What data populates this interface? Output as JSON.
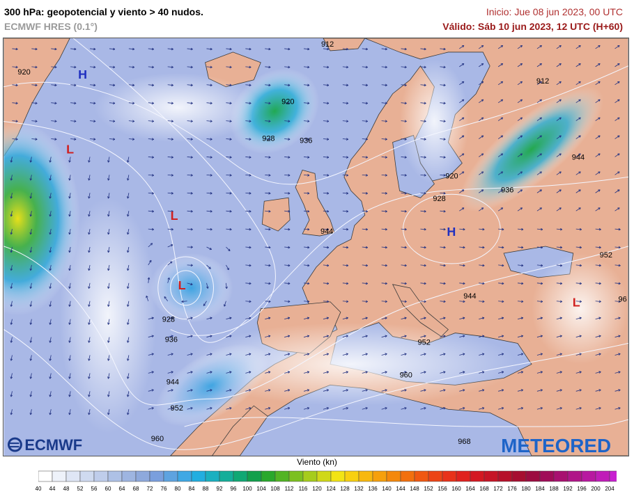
{
  "header": {
    "title": "300 hPa: geopotencial y viento > 40 nudos.",
    "subtitle": "ECMWF HRES (0.1°)",
    "init": "Inicio: Jue 08 jun 2023, 00 UTC",
    "valid": "Válido: Sáb 10 jun 2023, 12 UTC (H+60)"
  },
  "map": {
    "isohypse_labels": [
      "920",
      "912",
      "920",
      "928",
      "936",
      "912",
      "944",
      "920",
      "928",
      "936",
      "944",
      "952",
      "944",
      "928",
      "936",
      "944",
      "952",
      "960",
      "952",
      "960",
      "968",
      "96"
    ],
    "pressure_centers": [
      {
        "type": "H"
      },
      {
        "type": "L"
      },
      {
        "type": "L"
      },
      {
        "type": "L"
      },
      {
        "type": "H"
      },
      {
        "type": "L"
      }
    ],
    "logos": {
      "left": "ECMWF",
      "right": "METEORED"
    }
  },
  "legend": {
    "title": "Viento (kn)",
    "ticks": [
      "40",
      "44",
      "48",
      "52",
      "56",
      "60",
      "64",
      "68",
      "72",
      "76",
      "80",
      "84",
      "88",
      "92",
      "96",
      "100",
      "104",
      "108",
      "112",
      "116",
      "120",
      "124",
      "128",
      "132",
      "136",
      "140",
      "144",
      "148",
      "152",
      "156",
      "160",
      "164",
      "168",
      "172",
      "176",
      "180",
      "184",
      "188",
      "192",
      "196",
      "200",
      "204"
    ],
    "colors": [
      "#ffffff",
      "#eef2fa",
      "#dfe6f5",
      "#cfdaf0",
      "#bfcdeb",
      "#aec1e6",
      "#9eb5e1",
      "#8ea9dc",
      "#7a9fdd",
      "#5ea3e0",
      "#3fa8e4",
      "#22aee0",
      "#1ab0c0",
      "#14ae9a",
      "#10a874",
      "#12a04c",
      "#2aa82c",
      "#52b424",
      "#7cc020",
      "#a6cc1c",
      "#d0d818",
      "#f2e414",
      "#f8d010",
      "#f8b80e",
      "#f6a00c",
      "#f4880c",
      "#f2700e",
      "#f05812",
      "#ec4416",
      "#e8321a",
      "#e0221e",
      "#d41822",
      "#c61426",
      "#b6102a",
      "#a60e30",
      "#9c0c40",
      "#a00c58",
      "#a81070",
      "#b01488",
      "#b818a0",
      "#c01cb8",
      "#c820d0"
    ],
    "arrow_color": "#d83cd8"
  },
  "colors": {
    "ocean": "#a9b8e6",
    "land": "#e8b095"
  }
}
